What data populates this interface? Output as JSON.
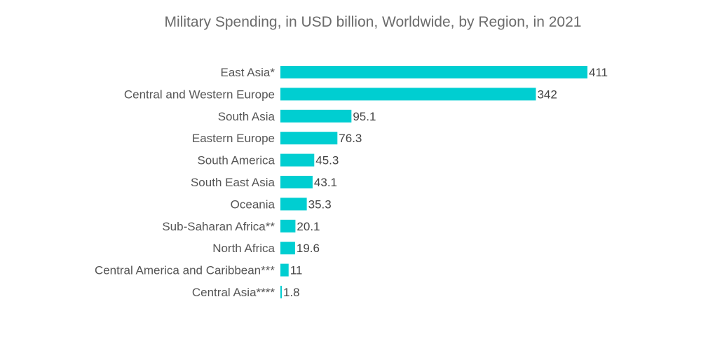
{
  "chart_data": {
    "type": "bar",
    "orientation": "horizontal",
    "title": "Military Spending, in USD billion,  Worldwide, by Region, in 2021",
    "xlabel": "",
    "ylabel": "",
    "grid": false,
    "legend": "none",
    "bar_color": "#00CED1",
    "xlim": [
      0,
      411
    ],
    "categories": [
      "East Asia*",
      "Central and Western Europe",
      "South Asia",
      "Eastern Europe",
      "South America",
      "South East Asia",
      "Oceania",
      "Sub-Saharan Africa**",
      "North Africa",
      "Central America and Caribbean***",
      "Central Asia****"
    ],
    "values": [
      411,
      342,
      95.1,
      76.3,
      45.3,
      43.1,
      35.3,
      20.1,
      19.6,
      11,
      1.8
    ],
    "value_labels": [
      "411",
      "342",
      "95.1",
      "76.3",
      "45.3",
      "43.1",
      "35.3",
      "20.1",
      "19.6",
      "11",
      "1.8"
    ]
  }
}
